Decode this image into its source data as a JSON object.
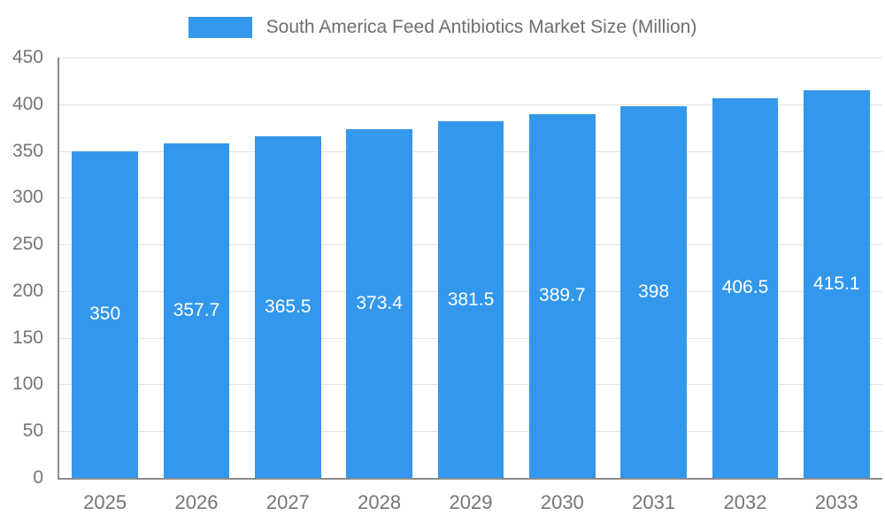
{
  "legend": {
    "swatch_color": "#3398ec"
  },
  "chart_data": {
    "type": "bar",
    "title": "South America Feed Antibiotics Market Size (Million)",
    "categories": [
      "2025",
      "2026",
      "2027",
      "2028",
      "2029",
      "2030",
      "2031",
      "2032",
      "2033"
    ],
    "values": [
      350,
      357.7,
      365.5,
      373.4,
      381.5,
      389.7,
      398,
      406.5,
      415.1
    ],
    "xlabel": "",
    "ylabel": "",
    "ylim": [
      0,
      450
    ],
    "ytick_interval": 50,
    "ytick_labels": [
      "0",
      "50",
      "100",
      "150",
      "200",
      "250",
      "300",
      "350",
      "400",
      "450"
    ],
    "bar_color": "#3398ec",
    "bar_label_color": "#ffffff",
    "grid": true,
    "legend_position": "top"
  }
}
